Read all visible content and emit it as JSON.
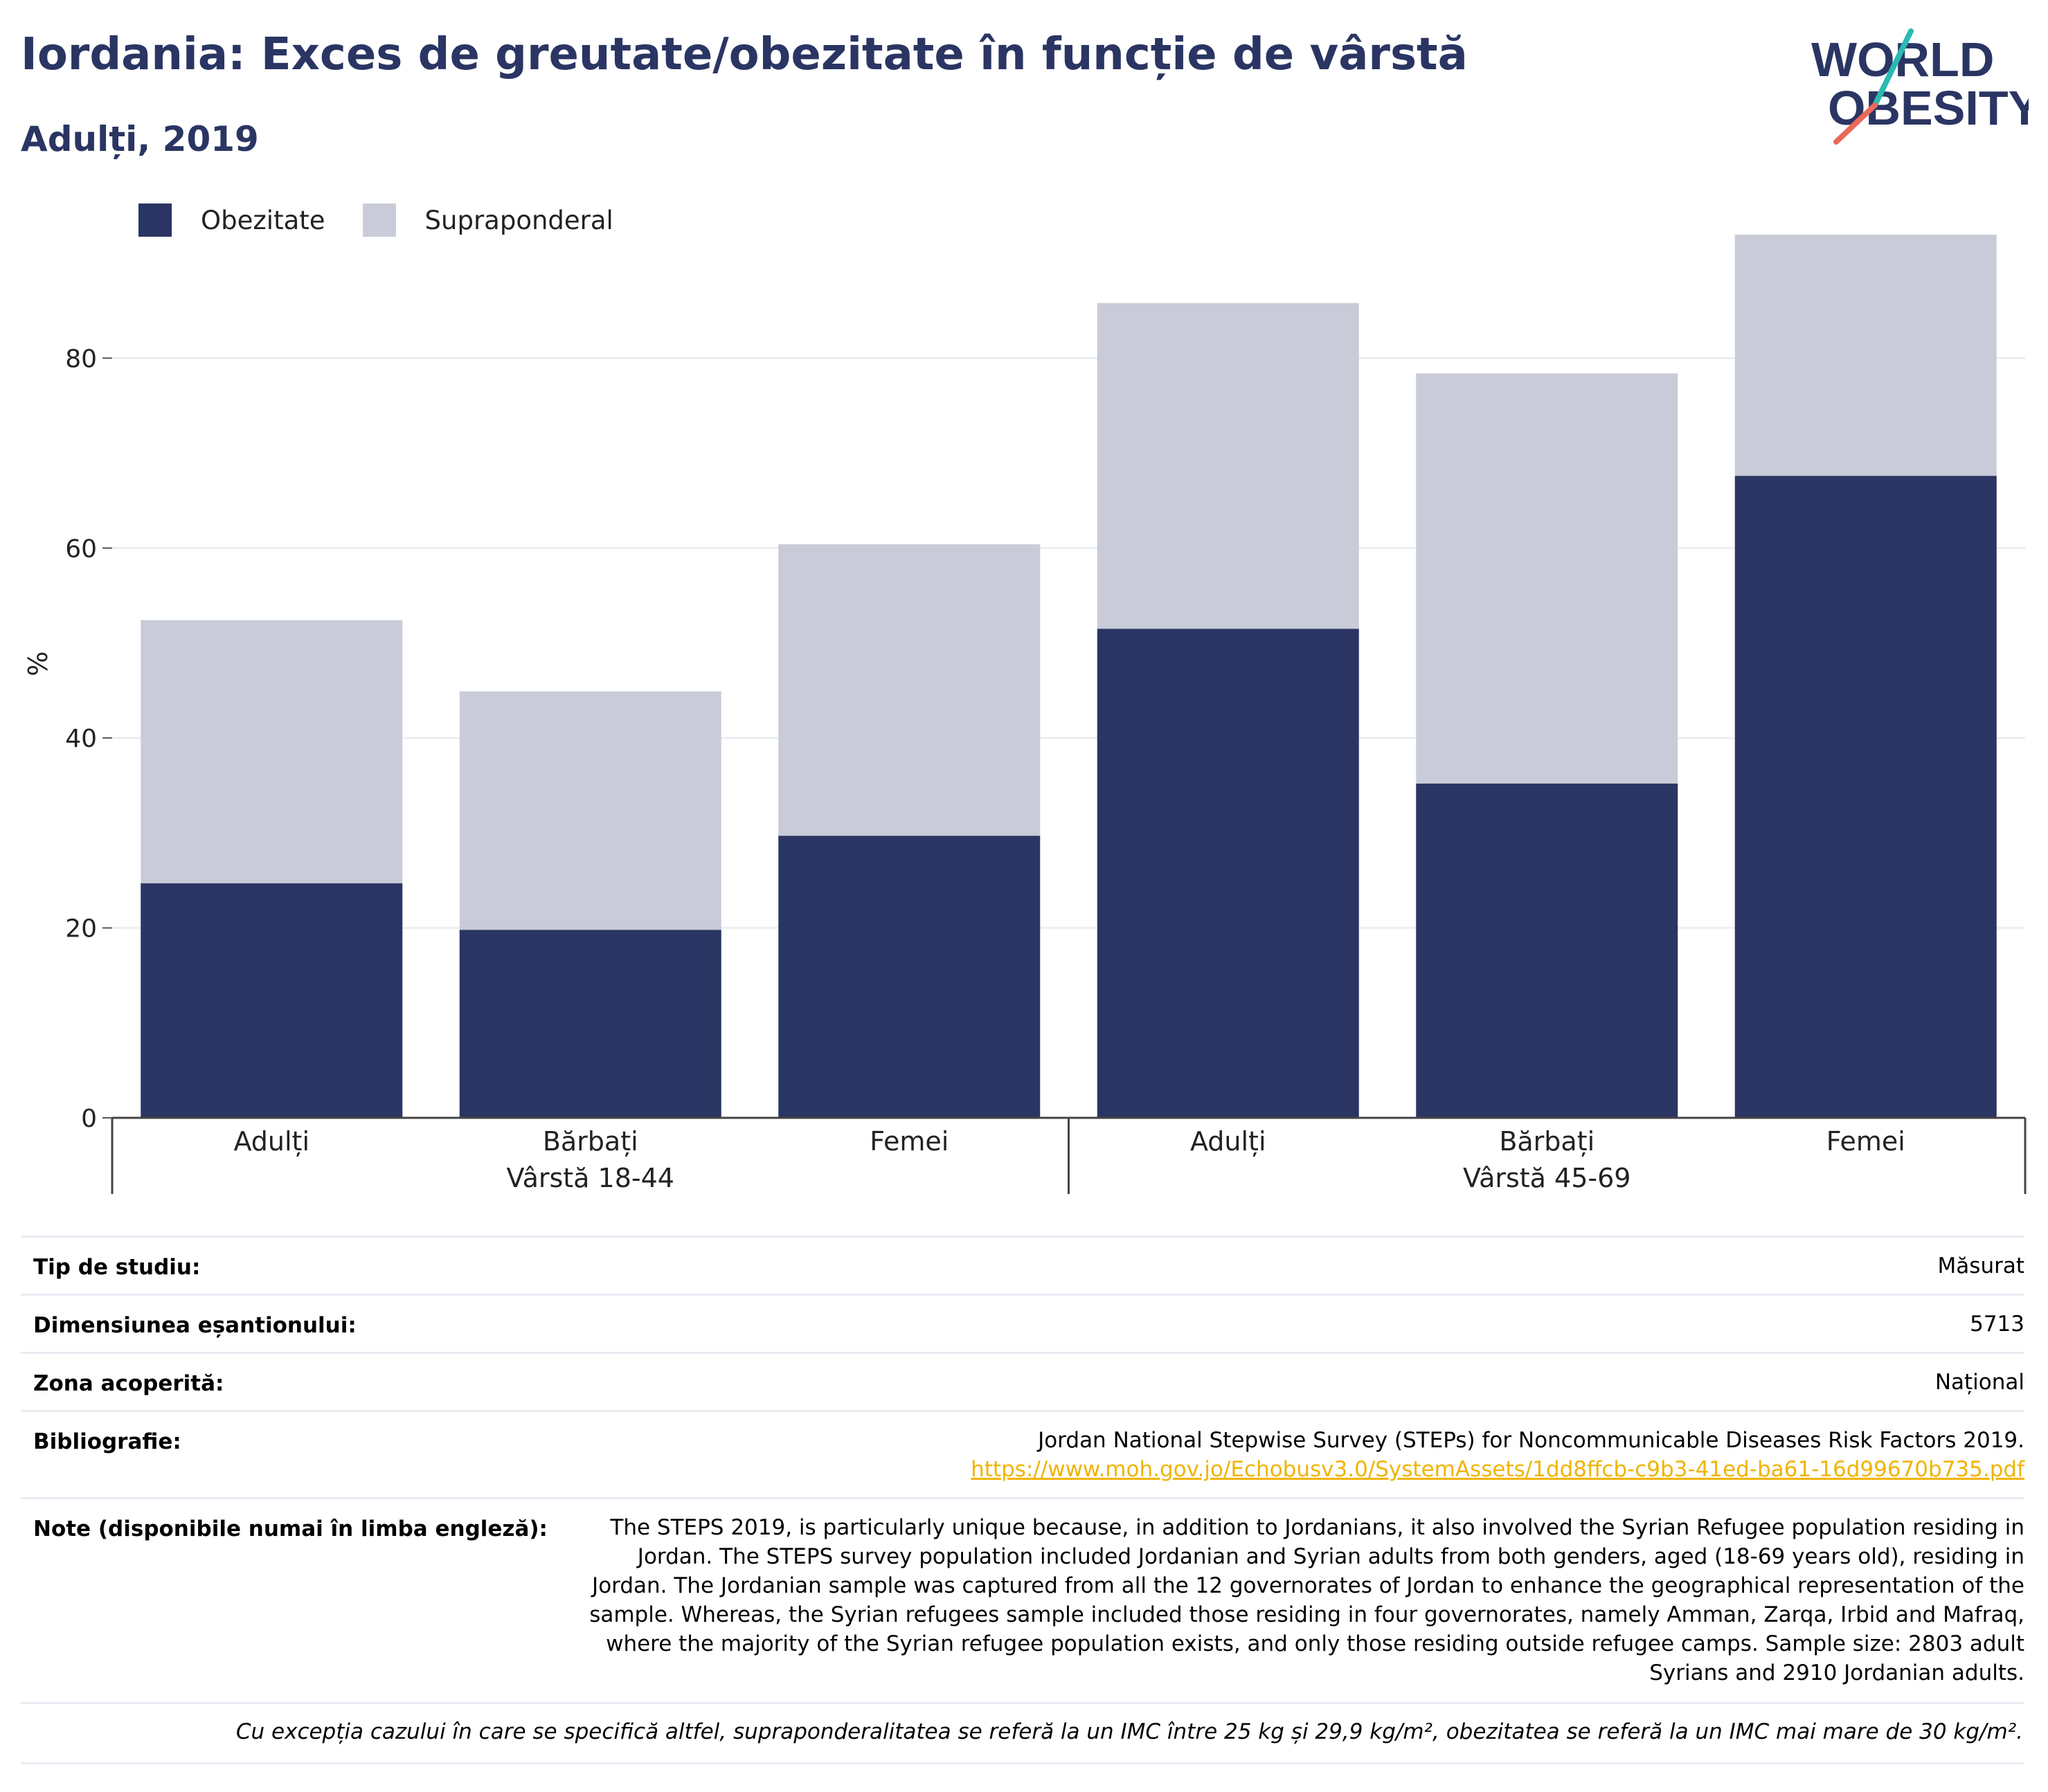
{
  "header": {
    "title": "Iordania: Exces de greutate/obezitate în funcție de vârstă",
    "subtitle": "Adulți, 2019"
  },
  "logo": {
    "line1": "WORLD",
    "line2": "OBESITY"
  },
  "colors": {
    "obesity": "#2a3563",
    "overweight": "#c9ccd8",
    "accent_teal": "#2bb9b2",
    "accent_red": "#ea6a5b"
  },
  "chart_data": {
    "type": "bar",
    "stacked": true,
    "ylabel": "%",
    "ylim": [
      0,
      100
    ],
    "yticks": [
      0,
      20,
      40,
      60,
      80
    ],
    "grid": true,
    "legend_position": "top-left",
    "categories": [
      "Adulți",
      "Bărbați",
      "Femei",
      "Adulți",
      "Bărbați",
      "Femei"
    ],
    "groups": [
      {
        "label": "Vârstă 18-44",
        "span": [
          0,
          2
        ]
      },
      {
        "label": "Vârstă 45-69",
        "span": [
          3,
          5
        ]
      }
    ],
    "series": [
      {
        "name": "Obezitate",
        "values": [
          24.7,
          19.8,
          29.7,
          51.5,
          35.2,
          67.6
        ]
      },
      {
        "name": "Supraponderal",
        "values": [
          27.7,
          25.1,
          30.7,
          34.3,
          43.2,
          25.4
        ]
      }
    ]
  },
  "meta": {
    "study_type_label": "Tip de studiu:",
    "study_type_value": "Măsurat",
    "sample_label": "Dimensiunea eșantionului:",
    "sample_value": "5713",
    "area_label": "Zona acoperită:",
    "area_value": "Național",
    "biblio_label": "Bibliografie:",
    "biblio_value": "Jordan National Stepwise Survey (STEPs) for Noncommunicable Diseases Risk Factors 2019.",
    "biblio_link": "https://www.moh.gov.jo/Echobusv3.0/SystemAssets/1dd8ffcb-c9b3-41ed-ba61-16d99670b735.pdf",
    "notes_label": "Note (disponibile numai în limba engleză):",
    "notes_lines": [
      "The STEPS 2019, is particularly unique because, in addition to Jordanians, it also involved the Syrian Refugee population residing in",
      "Jordan. The STEPS survey population included Jordanian and Syrian adults from both genders, aged (18-69 years old), residing in",
      "Jordan. The Jordanian sample was captured from all the 12 governorates of Jordan to enhance the geographical representation of the",
      "sample. Whereas, the Syrian refugees sample included those residing in four governorates, namely Amman, Zarqa, Irbid and Mafraq,",
      "where the majority of the Syrian refugee population exists, and only those residing outside refugee camps. Sample size: 2803 adult",
      "Syrians and 2910 Jordanian adults."
    ],
    "footnote": "Cu excepția cazului în care se specifică altfel, supraponderalitatea se referă la un IMC între 25 kg și 29,9 kg/m², obezitatea se referă la un IMC mai mare de 30 kg/m²."
  }
}
